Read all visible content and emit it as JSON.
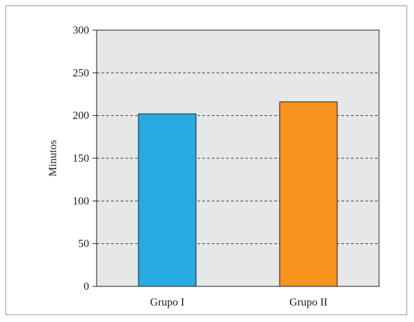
{
  "chart_data": {
    "type": "bar",
    "title": "",
    "xlabel": "",
    "ylabel": "Minutos",
    "categories": [
      "Grupo I",
      "Grupo II"
    ],
    "values": [
      202,
      216
    ],
    "bar_colors": [
      "#27aae1",
      "#f7941d"
    ],
    "ylim": [
      0,
      300
    ],
    "yticks": [
      0,
      50,
      100,
      150,
      200,
      250,
      300
    ],
    "grid": "horizontal dashed",
    "plot_background": "#e6e7e8"
  }
}
